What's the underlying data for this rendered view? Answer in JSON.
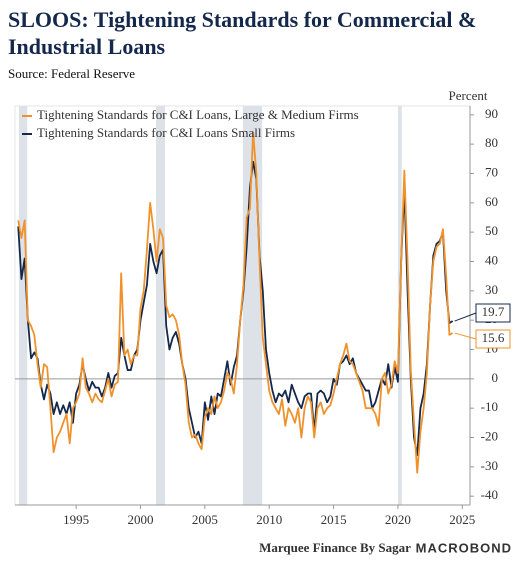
{
  "chart_data": {
    "type": "line",
    "title": "SLOOS: Tightening Standards for Commercial & Industrial Loans",
    "subtitle": "Source: Federal Reserve",
    "y_axis_label": "Percent",
    "footer": "Marquee Finance By Sagar",
    "brand": "MACROBOND",
    "x": [
      1990.5,
      1990.75,
      1991,
      1991.25,
      1991.5,
      1991.75,
      1992,
      1992.25,
      1992.5,
      1992.75,
      1993,
      1993.25,
      1993.5,
      1993.75,
      1994,
      1994.25,
      1994.5,
      1994.75,
      1995,
      1995.25,
      1995.5,
      1995.75,
      1996,
      1996.25,
      1996.5,
      1996.75,
      1997,
      1997.25,
      1997.5,
      1997.75,
      1998,
      1998.25,
      1998.5,
      1998.75,
      1999,
      1999.25,
      1999.5,
      1999.75,
      2000,
      2000.25,
      2000.5,
      2000.75,
      2001,
      2001.25,
      2001.5,
      2001.75,
      2002,
      2002.25,
      2002.5,
      2002.75,
      2003,
      2003.25,
      2003.5,
      2003.75,
      2004,
      2004.25,
      2004.5,
      2004.75,
      2005,
      2005.25,
      2005.5,
      2005.75,
      2006,
      2006.25,
      2006.5,
      2006.75,
      2007,
      2007.25,
      2007.5,
      2007.75,
      2008,
      2008.25,
      2008.5,
      2008.75,
      2009,
      2009.25,
      2009.5,
      2009.75,
      2010,
      2010.25,
      2010.5,
      2010.75,
      2011,
      2011.25,
      2011.5,
      2011.75,
      2012,
      2012.25,
      2012.5,
      2012.75,
      2013,
      2013.25,
      2013.5,
      2013.75,
      2014,
      2014.25,
      2014.5,
      2014.75,
      2015,
      2015.25,
      2015.5,
      2015.75,
      2016,
      2016.25,
      2016.5,
      2016.75,
      2017,
      2017.25,
      2017.5,
      2017.75,
      2018,
      2018.25,
      2018.5,
      2018.75,
      2019,
      2019.25,
      2019.5,
      2019.75,
      2020,
      2020.25,
      2020.5,
      2020.75,
      2021,
      2021.25,
      2021.5,
      2021.75,
      2022,
      2022.25,
      2022.5,
      2022.75,
      2023,
      2023.25,
      2023.5,
      2023.75,
      2024,
      2024.25
    ],
    "series": [
      {
        "name": "Tightening Standards for C&I Loans, Large & Medium Firms",
        "color": "#f0922b",
        "values": [
          54,
          48,
          54,
          20,
          18,
          15,
          5,
          -3,
          5,
          4,
          -10,
          -25,
          -20,
          -18,
          -15,
          -12,
          -22,
          -10,
          -8,
          -5,
          7,
          -3,
          -5,
          -8,
          -5,
          -7,
          -8,
          -4,
          0,
          -6,
          -2,
          -1,
          36,
          8,
          10,
          5,
          8,
          8,
          24,
          30,
          44,
          60,
          51,
          40,
          51,
          48,
          25,
          21,
          22,
          20,
          15,
          5,
          -2,
          -15,
          -20,
          -19,
          -22,
          -24,
          -13,
          -10,
          -12,
          -6,
          -10,
          -8,
          -4,
          2,
          0,
          -5,
          5,
          20,
          32,
          55,
          58,
          84,
          70,
          40,
          14,
          5,
          -4,
          -8,
          -10,
          -12,
          -7,
          -16,
          -10,
          -12,
          -15,
          -10,
          -20,
          -10,
          -6,
          -8,
          -20,
          -10,
          -8,
          -12,
          -10,
          -9,
          -5,
          0,
          5,
          8,
          12,
          6,
          5,
          2,
          -1,
          -4,
          -10,
          -10,
          -10,
          -12,
          -16,
          0,
          2,
          -5,
          -2,
          6,
          2,
          40,
          71,
          40,
          3,
          -15,
          -32,
          -18,
          -10,
          2,
          25,
          40,
          45,
          46,
          51,
          35,
          15,
          15.6
        ]
      },
      {
        "name": "Tightening Standards for C&I Loans Small Firms",
        "color": "#14284b",
        "values": [
          52,
          34,
          41,
          20,
          7,
          9,
          7,
          -2,
          -7,
          -2,
          -5,
          -12,
          -8,
          -12,
          -9,
          -12,
          -8,
          -15,
          -5,
          -2,
          5,
          0,
          -4,
          -1,
          -3,
          -3,
          -6,
          -3,
          2,
          -3,
          1,
          2,
          14,
          8,
          3,
          3,
          8,
          10,
          20,
          26,
          32,
          46,
          40,
          36,
          42,
          44,
          18,
          10,
          14,
          16,
          12,
          5,
          0,
          -10,
          -15,
          -20,
          -18,
          -22,
          -8,
          -14,
          -6,
          -12,
          -5,
          -6,
          0,
          6,
          -2,
          4,
          8,
          20,
          30,
          45,
          65,
          74,
          68,
          42,
          30,
          10,
          2,
          -4,
          -8,
          -5,
          -6,
          -4,
          -8,
          -2,
          -5,
          -8,
          -10,
          -6,
          -5,
          -5,
          -18,
          -5,
          -4,
          -5,
          -8,
          -6,
          0,
          -2,
          5,
          6,
          8,
          5,
          7,
          2,
          0,
          -2,
          -4,
          -4,
          -10,
          -8,
          -4,
          0,
          -2,
          5,
          -3,
          4,
          -1,
          40,
          65,
          30,
          0,
          -20,
          -26,
          -10,
          -5,
          5,
          25,
          42,
          46,
          47,
          50,
          30,
          19,
          19.7
        ]
      }
    ],
    "shaded_periods": [
      [
        1990.55,
        1991.2
      ],
      [
        2001.2,
        2001.9
      ],
      [
        2007.95,
        2009.45
      ],
      [
        2020.0,
        2020.3
      ]
    ],
    "shade_color": "#dde1e8",
    "xlim": [
      1990.25,
      2025.6
    ],
    "ylim": [
      -43,
      93
    ],
    "xticks": [
      1995,
      2000,
      2005,
      2010,
      2015,
      2020,
      2025
    ],
    "yticks": [
      -40,
      -30,
      -20,
      -10,
      0,
      10,
      20,
      30,
      40,
      50,
      60,
      70,
      80,
      90
    ],
    "legend": "upper left"
  }
}
